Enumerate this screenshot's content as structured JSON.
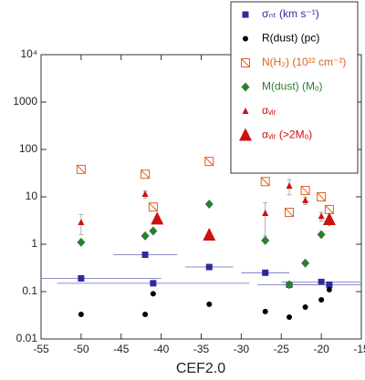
{
  "chart_data": {
    "type": "scatter",
    "x_label": "CEF2.0",
    "xlim": [
      -55,
      -15
    ],
    "xticks": [
      -55,
      -50,
      -45,
      -40,
      -35,
      -30,
      -25,
      -20,
      -15
    ],
    "ylim": [
      0.01,
      10000
    ],
    "log_y": true,
    "yticks": [
      0.01,
      0.1,
      1,
      10,
      100,
      1000,
      {
        "value": 10000,
        "label": "10⁴"
      }
    ],
    "legend": "upper right",
    "series": [
      {
        "name": "σₙₜ (km s⁻¹)",
        "color": "#2b2b9c",
        "marker": "square",
        "x": [
          -50,
          -42,
          -41,
          -34,
          -27,
          -24,
          -20,
          -19
        ],
        "values": [
          0.19,
          0.6,
          0.15,
          0.33,
          0.25,
          0.14,
          0.16,
          0.14
        ],
        "xerr": [
          10,
          4,
          12,
          3,
          3,
          4,
          5,
          6
        ]
      },
      {
        "name": "R(dust) (pc)",
        "color": "#000000",
        "marker": "circle",
        "x": [
          -50,
          -42,
          -41,
          -34,
          -27,
          -24,
          -22,
          -20,
          -19
        ],
        "values": [
          0.033,
          0.033,
          0.09,
          0.054,
          0.038,
          0.029,
          0.047,
          0.067,
          0.11
        ]
      },
      {
        "name": "N(H₂) (10²² cm⁻²)",
        "color": "#e06020",
        "marker": "open-square",
        "x": [
          -50,
          -42,
          -41,
          -34,
          -27,
          -24,
          -22,
          -20,
          -19
        ],
        "values": [
          38,
          30,
          6.1,
          56,
          21,
          4.7,
          13.6,
          10,
          5.4
        ]
      },
      {
        "name": "M(dust) (Mₒ)",
        "color": "#2e7d32",
        "marker": "diamond",
        "x": [
          -50,
          -42,
          -41,
          -34,
          -27,
          -24,
          -22,
          -20,
          -19
        ],
        "values": [
          1.1,
          1.5,
          1.9,
          7,
          1.2,
          0.14,
          0.4,
          1.6,
          3.0
        ]
      },
      {
        "name": "αᵥᵢᵣ",
        "color": "#cc1111",
        "marker": "triangle",
        "x": [
          -50,
          -42,
          -27,
          -24,
          -22,
          -20
        ],
        "values": [
          2.9,
          11.4,
          4.5,
          17,
          8.4,
          3.9
        ],
        "yerr": [
          1.3,
          2,
          3,
          6,
          1.5,
          0.8
        ]
      },
      {
        "name": "αᵥᵢᵣ (>2Mₒ)",
        "color": "#cc1111",
        "marker": "big-triangle",
        "x": [
          -40.5,
          -34,
          -19
        ],
        "values": [
          3.4,
          1.56,
          3.3
        ]
      }
    ]
  }
}
